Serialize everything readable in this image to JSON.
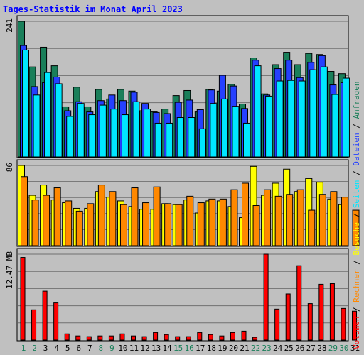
{
  "chart_data": {
    "type": "bar",
    "title": "Tages-Statistik im Monat April 2023",
    "categories": [
      "1",
      "2",
      "3",
      "4",
      "5",
      "6",
      "7",
      "8",
      "9",
      "10",
      "11",
      "12",
      "13",
      "14",
      "15",
      "16",
      "17",
      "18",
      "19",
      "20",
      "21",
      "22",
      "23",
      "24",
      "25",
      "26",
      "27",
      "28",
      "29",
      "30",
      "31"
    ],
    "weekend_days": [
      "1",
      "2",
      "8",
      "9",
      "15",
      "16",
      "22",
      "23",
      "29",
      "30"
    ],
    "panels": [
      {
        "id": "top",
        "max_label": "241",
        "ymax": 241,
        "series": [
          {
            "name": "Anfragen",
            "color": "#1a7f5a",
            "values": [
              241,
              160,
              195,
              162,
              89,
              124,
              89,
              120,
              103,
              120,
              117,
              82,
              80,
              85,
              109,
              118,
              80,
              120,
              117,
              129,
              94,
              176,
              112,
              164,
              186,
              164,
              184,
              182,
              152,
              148,
              0
            ]
          },
          {
            "name": "Dateien",
            "color": "#2540ff",
            "values": [
              198,
              125,
              132,
              142,
              82,
              98,
              80,
              100,
              110,
              100,
              115,
              95,
              79,
              77,
              97,
              101,
              84,
              119,
              145,
              126,
              86,
              172,
              110,
              157,
              172,
              141,
              168,
              180,
              128,
              132,
              0
            ]
          },
          {
            "name": "Seiten",
            "color": "#00e7ff",
            "values": [
              190,
              110,
              150,
              130,
              72,
              95,
              75,
              92,
              85,
              75,
              98,
              85,
              60,
              60,
              70,
              70,
              50,
              95,
              103,
              90,
              60,
              162,
              108,
              135,
              136,
              135,
              155,
              160,
              111,
              140,
              0
            ]
          }
        ]
      },
      {
        "id": "middle",
        "max_label": "86",
        "ymax": 86,
        "series": [
          {
            "name": "Besuche",
            "color": "#ffff00",
            "values": [
              86,
              54,
              65,
              49,
              46,
              40,
              40,
              58,
              52,
              48,
              42,
              39,
              39,
              45,
              44,
              49,
              35,
              48,
              48,
              42,
              30,
              85,
              54,
              67,
              82,
              58,
              72,
              68,
              50,
              44,
              0
            ]
          },
          {
            "name": "Rechner",
            "color": "#ff8800",
            "values": [
              74,
              49,
              54,
              62,
              48,
              37,
              45,
              65,
              58,
              44,
              62,
              46,
              63,
              45,
              44,
              53,
              46,
              50,
              50,
              60,
              67,
              43,
              60,
              53,
              55,
              60,
              38,
              55,
              58,
              52,
              38
            ]
          }
        ]
      },
      {
        "id": "bottom",
        "max_label": "12.47 MB",
        "ymax": 12.47,
        "series": [
          {
            "name": "Volumen",
            "color": "#ff0000",
            "values": [
              12.0,
              4.4,
              7.1,
              5.4,
              0.9,
              0.6,
              0.5,
              0.6,
              0.6,
              0.9,
              0.6,
              0.5,
              1.1,
              0.8,
              0.5,
              0.5,
              1.1,
              0.8,
              0.6,
              1.1,
              1.3,
              0.4,
              12.47,
              4.5,
              6.7,
              10.8,
              5.3,
              8.1,
              8.2,
              4.6,
              4.2
            ]
          }
        ]
      }
    ],
    "legend": [
      {
        "label": "Volumen",
        "color": "#ff0000"
      },
      {
        "label": "Rechner",
        "color": "#ff8800"
      },
      {
        "label": "Besuche",
        "color": "#ffff00"
      },
      {
        "label": "Seiten",
        "color": "#00e7ff"
      },
      {
        "label": "Dateien",
        "color": "#2540ff"
      },
      {
        "label": "Anfragen",
        "color": "#1a7f5a"
      }
    ],
    "legend_separator": "/",
    "title_color": "#0000ff",
    "weekday_label_color": "#000000",
    "weekend_label_color": "#1a7f5a",
    "grid": true
  }
}
